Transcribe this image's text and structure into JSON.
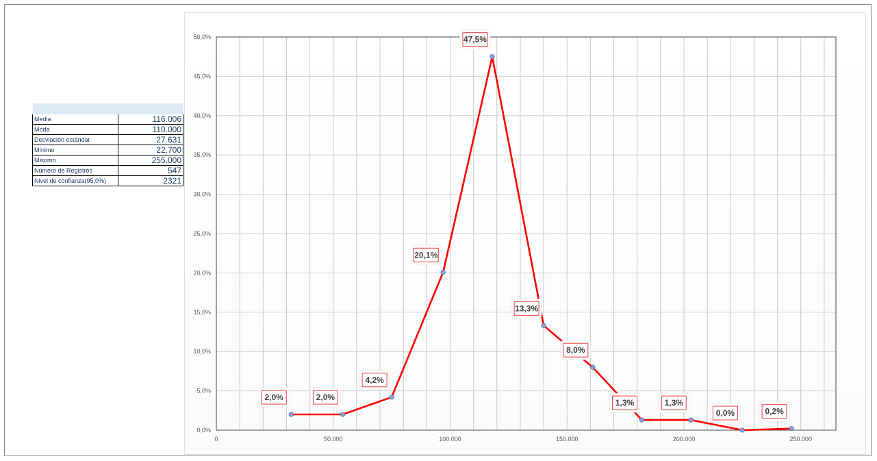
{
  "title": "",
  "stats": {
    "rows": [
      {
        "label": "Media",
        "value": "116.006"
      },
      {
        "label": "Moda",
        "value": "110.000"
      },
      {
        "label": "Desviación estándar",
        "value": "27.631"
      },
      {
        "label": "Mínimo",
        "value": "22.700"
      },
      {
        "label": "Máximo",
        "value": "255.000"
      },
      {
        "label": "Número de Registros",
        "value": "547"
      },
      {
        "label": "Nivel de confianza(95,0%)",
        "value": "2321"
      }
    ]
  },
  "chart_data": {
    "type": "line",
    "title": "",
    "xlabel": "",
    "ylabel": "",
    "x": [
      32000,
      54000,
      75000,
      97000,
      118000,
      140000,
      161000,
      182000,
      203000,
      225000,
      246000
    ],
    "series": [
      {
        "values": [
          2.0,
          2.0,
          4.2,
          20.1,
          47.5,
          13.3,
          8.0,
          1.3,
          1.3,
          0.0,
          0.2
        ],
        "labels": [
          "2,0%",
          "2,0%",
          "4,2%",
          "20,1%",
          "47,5%",
          "13,3%",
          "8,0%",
          "1,3%",
          "1,3%",
          "0,0%",
          "0,2%"
        ]
      }
    ],
    "xlim": [
      0,
      265000
    ],
    "ylim": [
      0,
      50
    ],
    "x_ticks": [
      0,
      50000,
      100000,
      150000,
      200000,
      250000
    ],
    "x_tick_labels": [
      "0",
      "50.000",
      "100.000",
      "150.000",
      "200.000",
      "250.000"
    ],
    "y_ticks": [
      0,
      5,
      10,
      15,
      20,
      25,
      30,
      35,
      40,
      45,
      50
    ],
    "y_tick_labels": [
      "0,0%",
      "5,0%",
      "10,0%",
      "15,0%",
      "20,0%",
      "25,0%",
      "30,0%",
      "35,0%",
      "40,0%",
      "45,0%",
      "50,0%"
    ],
    "x_minor_gridline_step": 10000,
    "grid": true,
    "legend": "none",
    "line_color": "#ff0000",
    "marker_color": "#8ea2d6"
  }
}
